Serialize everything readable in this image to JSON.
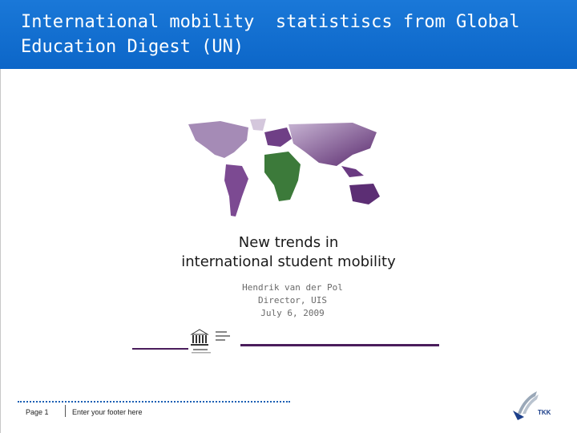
{
  "slide": {
    "title": "International mobility  statistiscs from Global Education Digest (UN)"
  },
  "embedded_slide": {
    "headline_line1": "New trends in",
    "headline_line2": "international student mobility",
    "presenter_name": "Hendrik van der Pol",
    "presenter_role": "Director, UIS",
    "presenter_date": "July 6, 2009"
  },
  "footer": {
    "page_label": "Page 1",
    "footer_text": "Enter your footer here",
    "logo_text": "TKK"
  },
  "colors": {
    "title_bar": "#0c66c8",
    "accent_purple": "#4a1d5c",
    "footer_dots": "#1a5fb4"
  }
}
